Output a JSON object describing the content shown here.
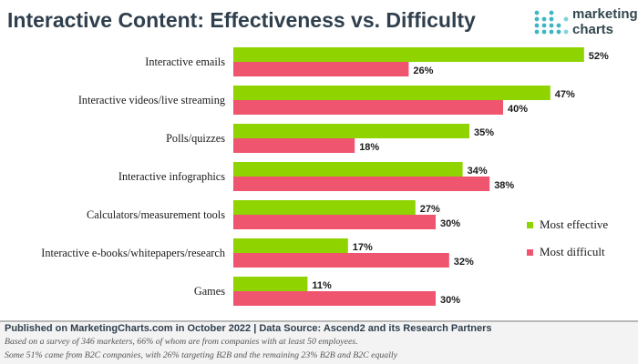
{
  "header": {
    "title": "Interactive Content: Effectiveness vs. Difficulty",
    "brand_line1": "marketing",
    "brand_line2": "charts"
  },
  "colors": {
    "most_effective": "#8fd400",
    "most_difficult": "#f0556f",
    "title": "#2f3f4d"
  },
  "legend": {
    "items": [
      {
        "label": "Most effective",
        "color": "#8fd400"
      },
      {
        "label": "Most difficult",
        "color": "#f0556f"
      }
    ],
    "position": "right"
  },
  "chart_data": {
    "type": "bar",
    "orientation": "horizontal",
    "title": "Interactive Content: Effectiveness vs. Difficulty",
    "categories": [
      "Interactive emails",
      "Interactive videos/live streaming",
      "Polls/quizzes",
      "Interactive infographics",
      "Calculators/measurement tools",
      "Interactive e-books/whitepapers/research",
      "Games"
    ],
    "series": [
      {
        "name": "Most effective",
        "values": [
          52,
          47,
          35,
          34,
          27,
          17,
          11
        ],
        "color": "#8fd400"
      },
      {
        "name": "Most difficult",
        "values": [
          26,
          40,
          18,
          38,
          30,
          32,
          30
        ],
        "color": "#f0556f"
      }
    ],
    "value_suffix": "%",
    "xlim": [
      0,
      56
    ],
    "grid": false,
    "legend": "right"
  },
  "footer": {
    "source": "Published on MarketingCharts.com in October 2022 | Data Source: Ascend2 and its Research Partners",
    "note1": "Based on a survey of 346 marketers, 66% of whom are from companies with at least 50 employees.",
    "note2": "Some 51% came from B2C companies, with 26% targeting B2B and the remaining 23% B2B and B2C equally"
  }
}
